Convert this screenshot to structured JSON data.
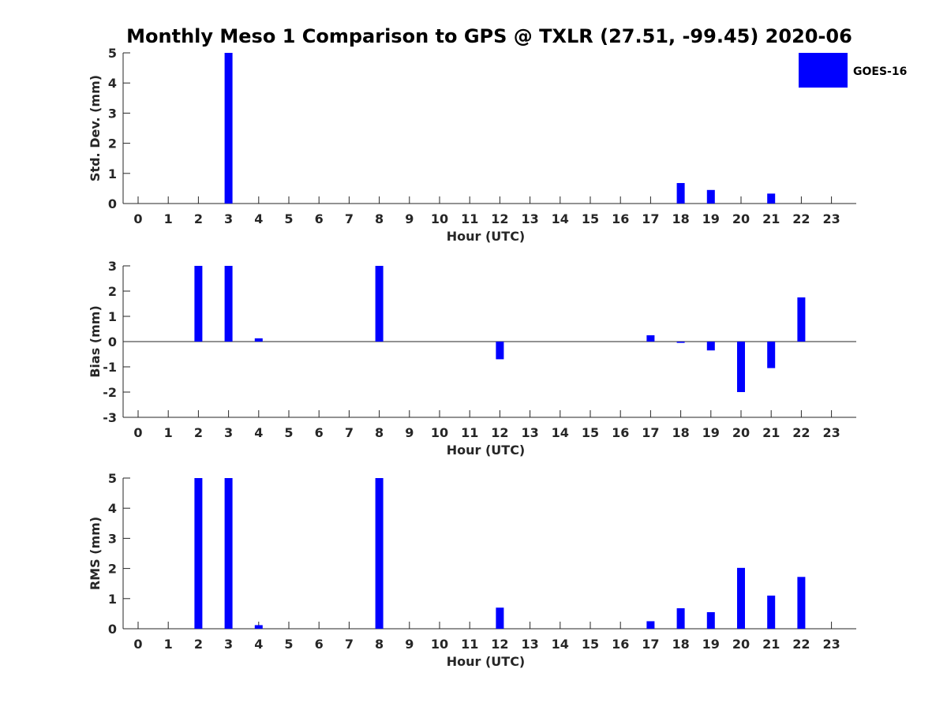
{
  "figure": {
    "title": "Monthly Meso 1 Comparison to GPS @ TXLR (27.51, -99.45) 2020-06"
  },
  "legend": {
    "label": "GOES-16",
    "color": "#0000ff"
  },
  "chart_data": [
    {
      "type": "bar",
      "title": "",
      "xlabel": "Hour (UTC)",
      "ylabel": "Std. Dev. (mm)",
      "ylim": [
        0,
        5
      ],
      "yticks": [
        0,
        1,
        2,
        3,
        4,
        5
      ],
      "categories": [
        "0",
        "1",
        "2",
        "3",
        "4",
        "5",
        "6",
        "7",
        "8",
        "9",
        "10",
        "11",
        "12",
        "13",
        "14",
        "15",
        "16",
        "17",
        "18",
        "19",
        "20",
        "21",
        "22",
        "23"
      ],
      "series": [
        {
          "name": "GOES-16",
          "color": "#0000ff",
          "values": [
            0,
            0,
            0,
            5.0,
            0,
            0,
            0,
            0,
            0,
            0,
            0,
            0,
            0,
            0,
            0,
            0,
            0,
            0,
            0.68,
            0.45,
            0,
            0.33,
            0,
            0
          ]
        }
      ]
    },
    {
      "type": "bar",
      "title": "",
      "xlabel": "Hour (UTC)",
      "ylabel": "Bias (mm)",
      "ylim": [
        -3,
        3
      ],
      "yticks": [
        -3,
        -2,
        -1,
        0,
        1,
        2,
        3
      ],
      "zero_line": true,
      "categories": [
        "0",
        "1",
        "2",
        "3",
        "4",
        "5",
        "6",
        "7",
        "8",
        "9",
        "10",
        "11",
        "12",
        "13",
        "14",
        "15",
        "16",
        "17",
        "18",
        "19",
        "20",
        "21",
        "22",
        "23"
      ],
      "series": [
        {
          "name": "GOES-16",
          "color": "#0000ff",
          "values": [
            0,
            0,
            3.0,
            3.0,
            0.13,
            0,
            0,
            0,
            3.0,
            0,
            0,
            0,
            -0.7,
            0,
            0,
            0,
            0,
            0.25,
            -0.05,
            -0.35,
            -2.0,
            -1.05,
            1.75,
            0
          ]
        }
      ]
    },
    {
      "type": "bar",
      "title": "",
      "xlabel": "Hour (UTC)",
      "ylabel": "RMS (mm)",
      "ylim": [
        0,
        5
      ],
      "yticks": [
        0,
        1,
        2,
        3,
        4,
        5
      ],
      "categories": [
        "0",
        "1",
        "2",
        "3",
        "4",
        "5",
        "6",
        "7",
        "8",
        "9",
        "10",
        "11",
        "12",
        "13",
        "14",
        "15",
        "16",
        "17",
        "18",
        "19",
        "20",
        "21",
        "22",
        "23"
      ],
      "series": [
        {
          "name": "GOES-16",
          "color": "#0000ff",
          "values": [
            0,
            0,
            5.0,
            5.0,
            0.12,
            0,
            0,
            0,
            5.0,
            0,
            0,
            0,
            0.7,
            0,
            0,
            0,
            0,
            0.25,
            0.68,
            0.55,
            2.02,
            1.1,
            1.72,
            0
          ]
        }
      ]
    }
  ]
}
